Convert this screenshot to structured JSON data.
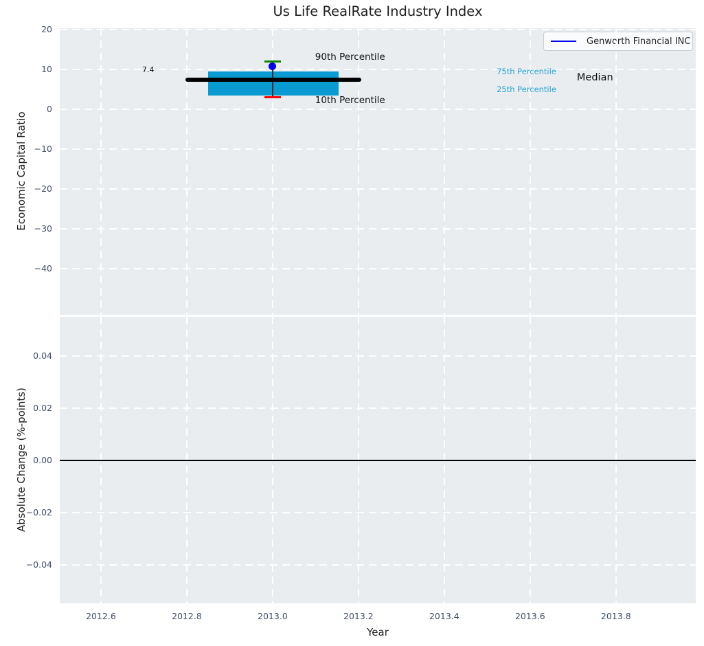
{
  "title": "Us Life RealRate Industry Index",
  "colors": {
    "figure_bg": "#ffffff",
    "axes_bg": "#e9edf0",
    "grid": "#ffffff",
    "tick_label": "#414e68",
    "text": "#1f1f1f",
    "box_fill": "#0a9ad2",
    "percentile_text": "#28a3d7",
    "p90_cap": "#0a8400",
    "p10_cap": "#fa0000",
    "company_point": "#0101ec",
    "median_line": "#000000"
  },
  "legend": {
    "label": "Genworth Financial INC",
    "line_color": "#0101ec"
  },
  "chart_data": [
    {
      "type": "box",
      "panel": "top",
      "title": "Us Life RealRate Industry Index",
      "ylabel": "Economic Capital Ratio",
      "xlim": [
        2012.504,
        2013.986
      ],
      "ylim": [
        -51.45,
        20.29
      ],
      "grid": true,
      "legend_position": "upper right",
      "yticks": [
        {
          "v": 20,
          "label": "20"
        },
        {
          "v": 10,
          "label": "10"
        },
        {
          "v": 0,
          "label": "0"
        },
        {
          "v": -10,
          "label": "−10"
        },
        {
          "v": -20,
          "label": "−20"
        },
        {
          "v": -30,
          "label": "−30"
        },
        {
          "v": -40,
          "label": "−40"
        }
      ],
      "box": {
        "x": 2013.0,
        "x_range": [
          2012.85,
          2013.154
        ],
        "cap_halfwidth": 0.019,
        "p90": 12.0,
        "p75": 9.5,
        "median": 7.4,
        "p25": 3.5,
        "p10": 3.0,
        "median_line_x": [
          2012.797,
          2013.207
        ],
        "fill": "#0a9ad2",
        "cap_colors": {
          "p90": "#0a8400",
          "p10": "#fa0000"
        }
      },
      "point": {
        "name": "Genworth Financial INC",
        "x": 2013.0,
        "y": 10.7,
        "color": "#0101ec"
      },
      "annotations": [
        {
          "text": "90th Percentile",
          "x": 2013.099,
          "y": 12.7,
          "color": "#111111",
          "size": 13.5,
          "anchor": "left"
        },
        {
          "text": "10th Percentile",
          "x": 2013.099,
          "y": 1.9,
          "color": "#111111",
          "size": 13.5,
          "anchor": "left"
        },
        {
          "text": "75th Percentile",
          "x": 2013.522,
          "y": 9.3,
          "color": "#28a3d7",
          "size": 11.5,
          "anchor": "left"
        },
        {
          "text": "25th Percentile",
          "x": 2013.522,
          "y": 4.8,
          "color": "#28a3d7",
          "size": 11.5,
          "anchor": "left"
        },
        {
          "text": "Median",
          "x": 2013.709,
          "y": 7.5,
          "color": "#111111",
          "size": 14.5,
          "anchor": "left"
        },
        {
          "text": "7.4",
          "x": 2012.71,
          "y": 9.6,
          "color": "#111111",
          "size": 11,
          "anchor": "center"
        }
      ]
    },
    {
      "type": "line",
      "panel": "bottom",
      "ylabel": "Absolute Change (%-points)",
      "xlabel": "Year",
      "xlim": [
        2012.504,
        2013.986
      ],
      "ylim": [
        -0.0549,
        0.0551
      ],
      "grid": true,
      "zero_line": 0.0,
      "yticks": [
        {
          "v": 0.04,
          "label": "0.04"
        },
        {
          "v": 0.02,
          "label": "0.02"
        },
        {
          "v": 0.0,
          "label": "0.00"
        },
        {
          "v": -0.02,
          "label": "−0.02"
        },
        {
          "v": -0.04,
          "label": "−0.04"
        }
      ],
      "xticks": [
        {
          "v": 2012.6,
          "label": "2012.6"
        },
        {
          "v": 2012.8,
          "label": "2012.8"
        },
        {
          "v": 2013.0,
          "label": "2013.0"
        },
        {
          "v": 2013.2,
          "label": "2013.2"
        },
        {
          "v": 2013.4,
          "label": "2013.4"
        },
        {
          "v": 2013.6,
          "label": "2013.6"
        },
        {
          "v": 2013.8,
          "label": "2013.8"
        }
      ]
    }
  ]
}
